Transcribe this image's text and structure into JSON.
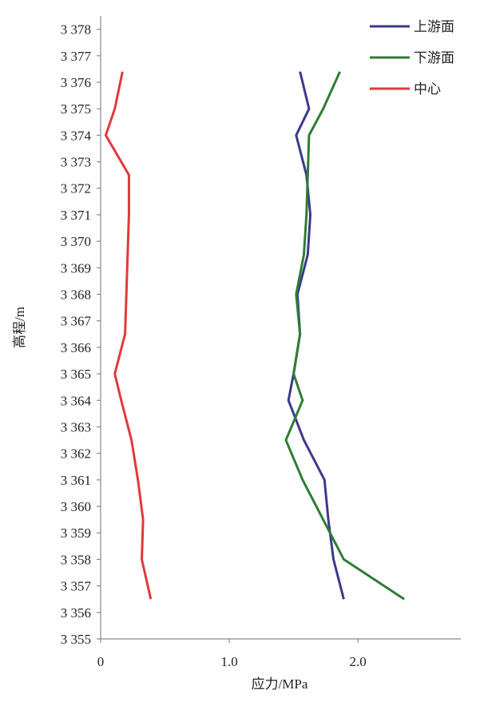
{
  "chart_data": {
    "type": "line",
    "x_label": "应力/MPa",
    "y_label": "高程/m",
    "y": [
      3356.5,
      3358,
      3359.5,
      3361,
      3362.5,
      3364,
      3365,
      3366.5,
      3368,
      3369.5,
      3371,
      3372.5,
      3374,
      3375,
      3376.4
    ],
    "series": [
      {
        "name": "上游面",
        "color": "#3a3a8c",
        "values": [
          1.89,
          1.81,
          1.77,
          1.74,
          1.58,
          1.46,
          1.5,
          1.55,
          1.53,
          1.61,
          1.63,
          1.6,
          1.52,
          1.62,
          1.55
        ]
      },
      {
        "name": "下游面",
        "color": "#2e7d32",
        "values": [
          2.36,
          1.89,
          1.73,
          1.57,
          1.44,
          1.57,
          1.5,
          1.55,
          1.52,
          1.58,
          1.6,
          1.61,
          1.62,
          1.73,
          1.86
        ]
      },
      {
        "name": "中心",
        "color": "#e03a3a",
        "values": [
          0.39,
          0.32,
          0.33,
          0.29,
          0.24,
          0.16,
          0.11,
          0.19,
          0.2,
          0.21,
          0.22,
          0.22,
          0.04,
          0.11,
          0.17
        ]
      }
    ],
    "xlim": [
      0,
      2.8
    ],
    "xticks": [
      0,
      {
        "value": 1,
        "label": "1.0"
      },
      {
        "value": 2,
        "label": "2.0"
      }
    ],
    "ylim": [
      3355,
      3378.5
    ],
    "yticks": [
      {
        "value": 3355,
        "label": "3 355"
      },
      {
        "value": 3356,
        "label": "3 356"
      },
      {
        "value": 3357,
        "label": "3 357"
      },
      {
        "value": 3358,
        "label": "3 358"
      },
      {
        "value": 3359,
        "label": "3 359"
      },
      {
        "value": 3360,
        "label": "3 360"
      },
      {
        "value": 3361,
        "label": "3 361"
      },
      {
        "value": 3362,
        "label": "3 362"
      },
      {
        "value": 3363,
        "label": "3 363"
      },
      {
        "value": 3364,
        "label": "3 364"
      },
      {
        "value": 3365,
        "label": "3 365"
      },
      {
        "value": 3366,
        "label": "3 366"
      },
      {
        "value": 3367,
        "label": "3 367"
      },
      {
        "value": 3368,
        "label": "3 368"
      },
      {
        "value": 3369,
        "label": "3 369"
      },
      {
        "value": 3370,
        "label": "3 370"
      },
      {
        "value": 3371,
        "label": "3 371"
      },
      {
        "value": 3372,
        "label": "3 372"
      },
      {
        "value": 3373,
        "label": "3 373"
      },
      {
        "value": 3374,
        "label": "3 374"
      },
      {
        "value": 3375,
        "label": "3 375"
      },
      {
        "value": 3376,
        "label": "3 376"
      },
      {
        "value": 3377,
        "label": "3 377"
      },
      {
        "value": 3378,
        "label": "3 378"
      }
    ],
    "grid": false,
    "legend": "top-right"
  }
}
